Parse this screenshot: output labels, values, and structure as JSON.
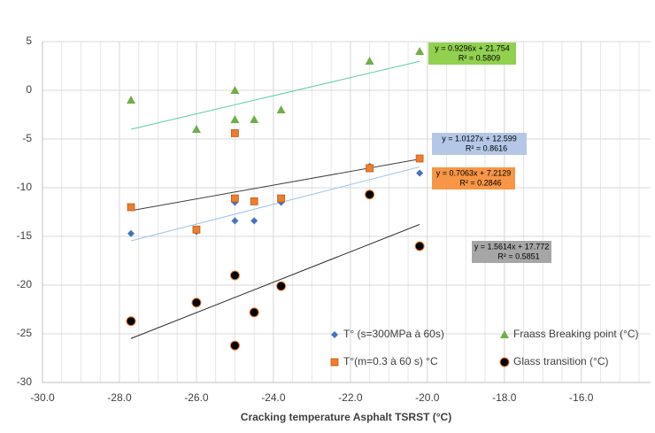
{
  "chart_data": {
    "type": "scatter",
    "x_label": "Cracking temperature Asphalt TSRST (°C)",
    "xlim": [
      -30,
      -14.2
    ],
    "xticks": [
      {
        "value": -30,
        "label": "-30.0"
      },
      {
        "value": -28,
        "label": "-28.0"
      },
      {
        "value": -26,
        "label": "-26.0"
      },
      {
        "value": -24,
        "label": "-24.0"
      },
      {
        "value": -22,
        "label": "-22.0"
      },
      {
        "value": -20,
        "label": "-20.0"
      },
      {
        "value": -18,
        "label": "-18.0"
      },
      {
        "value": -16,
        "label": "-16.0"
      }
    ],
    "ylim": [
      -30,
      5
    ],
    "yticks": [
      -30,
      -25,
      -20,
      -15,
      -10,
      -5,
      0,
      5
    ],
    "grid": true,
    "x_minor_step": 0.5,
    "legend": "lower-right",
    "series": [
      {
        "name": "T° (s=300MPa à 60s)",
        "color": "#4472c4",
        "marker": "diamond",
        "x": [
          -27.7,
          -26,
          -25,
          -25,
          -24.5,
          -23.8,
          -21.5,
          -20.2
        ],
        "values": [
          -14.7,
          -14.5,
          -13.4,
          -11.5,
          -13.4,
          -11.5,
          -7.8,
          -8.5
        ],
        "trendline": {
          "color": "#9dc3e6",
          "slope": 1.0127,
          "intercept": 12.599,
          "label": "y = 1.0127x + 12.599",
          "r2": 0.8616,
          "r2_label": "R² = 0.8616",
          "box": "#b4c7e7"
        }
      },
      {
        "name": "Fraass Breaking point (°C)",
        "color": "#70ad47",
        "marker": "triangle",
        "x": [
          -27.7,
          -26,
          -25,
          -25,
          -24.5,
          -23.8,
          -21.5,
          -20.2
        ],
        "values": [
          -1,
          -4,
          0,
          -3,
          -3,
          -2,
          3,
          4
        ],
        "trendline": {
          "color": "#5fcfa0",
          "slope": 0.9296,
          "intercept": 21.754,
          "label": "y = 0.9296x + 21.754",
          "r2": 0.5809,
          "r2_label": "R² = 0.5809",
          "box": "#92d050"
        }
      },
      {
        "name": "T°(m=0.3 à 60 s) °C",
        "color": "#ed7d31",
        "marker": "square",
        "x": [
          -27.7,
          -26,
          -25,
          -25,
          -24.5,
          -23.8,
          -21.5,
          -20.2
        ],
        "values": [
          -12,
          -14.3,
          -4.4,
          -11.1,
          -11.4,
          -11.1,
          -8,
          -7
        ],
        "trendline": {
          "color": "#404040",
          "slope": 0.7063,
          "intercept": 7.2129,
          "label": "y = 0.7063x + 7.2129",
          "r2": 0.2846,
          "r2_label": "R² = 0.2846",
          "box": "#f79646"
        }
      },
      {
        "name": "Glass transition (°C)",
        "color": "#000000",
        "marker": "circle",
        "x": [
          -27.7,
          -26,
          -25,
          -25,
          -24.5,
          -23.8,
          -21.5,
          -20.2
        ],
        "values": [
          -23.7,
          -21.8,
          -19,
          -26.2,
          -22.8,
          -20.1,
          -10.7,
          -16
        ],
        "trendline": {
          "color": "#262626",
          "slope": 1.5614,
          "intercept": 17.772,
          "label": "y = 1.5614x + 17.772",
          "r2": 0.5851,
          "r2_label": "R² = 0.5851",
          "box": "#a6a6a6"
        }
      }
    ]
  }
}
